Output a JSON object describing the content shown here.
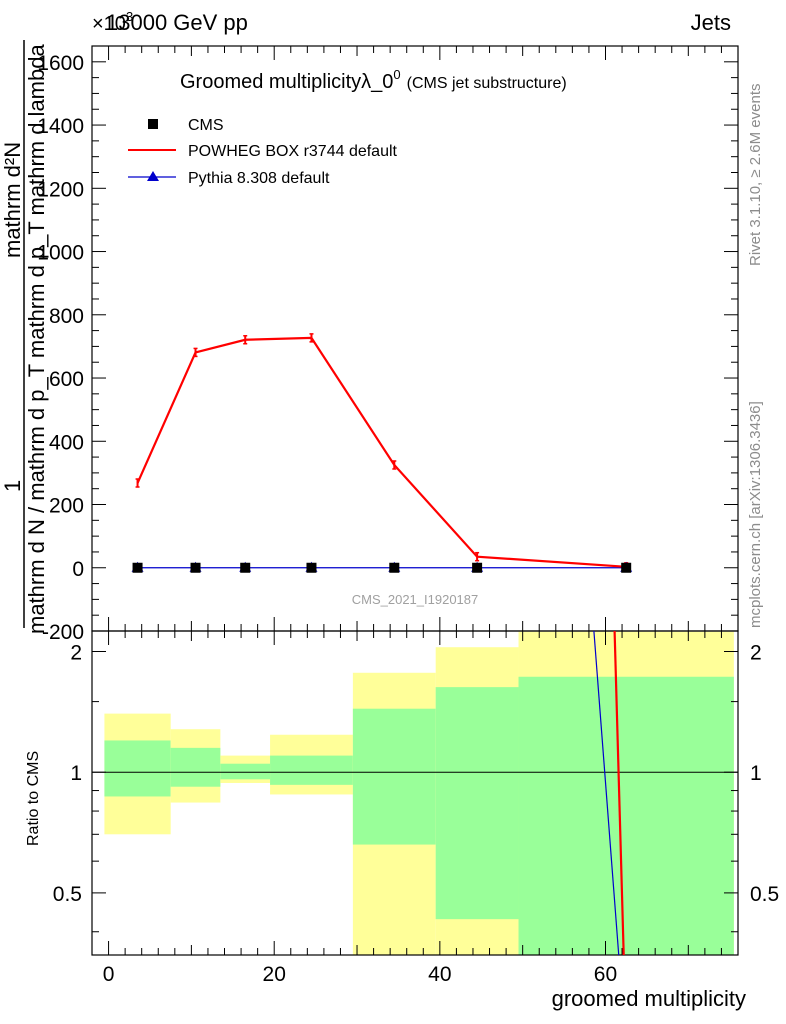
{
  "header": {
    "energy_label": "13000 GeV pp",
    "process_label": "Jets",
    "exponent_label": "×10",
    "exponent_power": "3"
  },
  "side_text": {
    "rivet": "Rivet 3.1.10, ≥ 2.6M events",
    "mcplots": "mcplots.cern.ch [arXiv:1306.3436]"
  },
  "main": {
    "title": "Groomed multiplicityλ_0",
    "title_sup": "0",
    "title_suffix": "(CMS jet substructure)",
    "ylabel_numerator": "1",
    "ylabel_denominator": "mathrm d N / mathrm d p_T mathrm d p_T mathrm d lambda",
    "ylabel_top": "mathrm d²N",
    "analysis_id": "CMS_2021_I1920187"
  },
  "ratio": {
    "ylabel": "Ratio to CMS"
  },
  "xaxis": {
    "label": "groomed multiplicity"
  },
  "legend": [
    {
      "name": "CMS",
      "color": "#000000",
      "marker": "square"
    },
    {
      "name": "POWHEG BOX r3744 default",
      "color": "#ff0000",
      "marker": "line"
    },
    {
      "name": "Pythia 8.308 default",
      "color": "#0000cc",
      "marker": "triangle"
    }
  ],
  "chart_data": {
    "type": "line",
    "title": "Groomed multiplicityλ_0^0 (CMS jet substructure)",
    "xlabel": "groomed multiplicity",
    "xlim": [
      -2,
      76
    ],
    "main_ylim": [
      -200,
      1650
    ],
    "y_scale_factor": "×10^3",
    "main_yticks": [
      -200,
      0,
      200,
      400,
      600,
      800,
      1000,
      1200,
      1400,
      1600
    ],
    "xticks": [
      0,
      20,
      40,
      60
    ],
    "ratio_ylim": [
      0.35,
      2.25
    ],
    "ratio_yticks": [
      0.5,
      1,
      2
    ],
    "series": [
      {
        "name": "CMS",
        "x": [
          3.5,
          10.5,
          16.5,
          24.5,
          34.5,
          44.5,
          62.5
        ],
        "values": [
          0,
          0,
          0,
          0,
          0,
          0,
          0
        ],
        "color": "#000000"
      },
      {
        "name": "POWHEG BOX r3744 default",
        "x": [
          3.5,
          10.5,
          16.5,
          24.5,
          34.5,
          44.5,
          62.5
        ],
        "values": [
          268,
          681,
          721,
          727,
          325,
          35,
          3
        ],
        "color": "#ff0000"
      },
      {
        "name": "Pythia 8.308 default",
        "x": [
          3.5,
          10.5,
          16.5,
          24.5,
          34.5,
          44.5,
          62.5
        ],
        "values": [
          0,
          0,
          0,
          0,
          0,
          0,
          0
        ],
        "color": "#0000cc"
      }
    ],
    "ratio_bands": [
      {
        "xmin": -0.5,
        "xmax": 7.5,
        "yellow": [
          0.7,
          1.4
        ],
        "green": [
          0.87,
          1.2
        ]
      },
      {
        "xmin": 7.5,
        "xmax": 13.5,
        "yellow": [
          0.84,
          1.28
        ],
        "green": [
          0.92,
          1.15
        ]
      },
      {
        "xmin": 13.5,
        "xmax": 19.5,
        "yellow": [
          0.94,
          1.1
        ],
        "green": [
          0.96,
          1.05
        ]
      },
      {
        "xmin": 19.5,
        "xmax": 29.5,
        "yellow": [
          0.88,
          1.24
        ],
        "green": [
          0.93,
          1.1
        ]
      },
      {
        "xmin": 29.5,
        "xmax": 39.5,
        "yellow": [
          0.35,
          1.77
        ],
        "green": [
          0.66,
          1.44
        ]
      },
      {
        "xmin": 39.5,
        "xmax": 49.5,
        "yellow": [
          0.35,
          2.05
        ],
        "green": [
          0.43,
          1.63
        ]
      },
      {
        "xmin": 49.5,
        "xmax": 75.5,
        "yellow": [
          0.35,
          2.24
        ],
        "green": [
          0.35,
          1.73
        ]
      }
    ],
    "ratio_lines": [
      {
        "name": "POWHEG BOX r3744 default",
        "color": "#ff0000",
        "points": [
          [
            61.1,
            2.25
          ],
          [
            62.2,
            0.35
          ]
        ]
      },
      {
        "name": "Pythia 8.308 default",
        "color": "#0000cc",
        "points": [
          [
            58.6,
            2.25
          ],
          [
            61.6,
            0.35
          ]
        ]
      }
    ]
  }
}
